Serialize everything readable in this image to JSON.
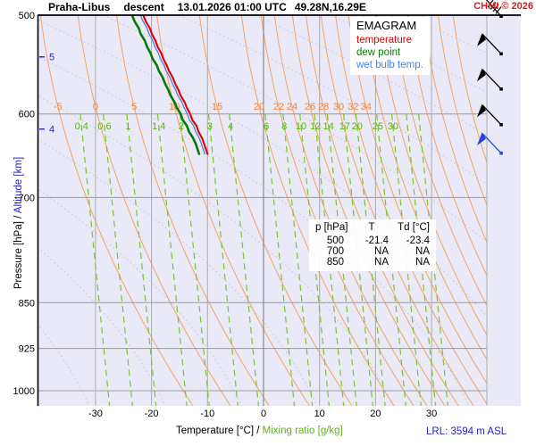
{
  "header": {
    "station": "Praha-Libus",
    "profile_type": "descent",
    "datetime": "13.01.2026 01:00 UTC",
    "coordinates": "49.28N,16.29E",
    "copyright": "CHMI © 2026"
  },
  "legend": {
    "heading": "EMAGRAM",
    "items": [
      {
        "name": "temperature",
        "color": "#dd0000"
      },
      {
        "name": "dew point",
        "color": "#077a07"
      },
      {
        "name": "wet bulb temp.",
        "color": "#4d7fe8"
      }
    ]
  },
  "readout_table": {
    "columns": [
      "p [hPa]",
      "T",
      "Td [°C]"
    ],
    "rows": [
      [
        "500",
        "-21.4",
        "-23.4"
      ],
      [
        "700",
        "NA",
        "NA"
      ],
      [
        "850",
        "NA",
        "NA"
      ]
    ]
  },
  "axis_titles": {
    "y_black": "Pressure [hPa]",
    "y_separator": " /  ",
    "y_blue": "Altitude [km]",
    "x_black": "Temperature [°C]",
    "x_separator": " /  ",
    "x_green": "Mixing ratio [g/kg]"
  },
  "footer": {
    "lrl_label": "LRL: 3594 m ASL"
  },
  "chart_data": {
    "type": "line",
    "diagram": "emagram thermodynamic sounding diagram",
    "title": "Praha-Libus descent 13.01.2026 01:00 UTC 49.28N,16.29E",
    "x_axis": {
      "label": "Temperature [°C]",
      "ticks": [
        -30,
        -20,
        -10,
        0,
        10,
        20,
        30
      ],
      "range": [
        -40.3,
        39.9
      ],
      "grid": true
    },
    "y_axis": {
      "label": "Pressure [hPa]",
      "scale": "log",
      "ticks": [
        500,
        600,
        700,
        850,
        925,
        1000
      ],
      "range": [
        500,
        1030
      ],
      "grid": true,
      "altitude_km_ticks": [
        {
          "km": "5",
          "hPa": 540
        },
        {
          "km": "4",
          "hPa": 617
        }
      ]
    },
    "colors": {
      "plot_background": "#e9e9f7",
      "isobar_grid": "#9a9a9a",
      "isotherm_grid": "#ababab",
      "isotherm_zero": "#787878",
      "dry_adiabat": "#f2a65e",
      "dry_adiabat_label": "#ee8844",
      "mixing_ratio": "#7cc62a",
      "mixing_ratio_label": "#5cb514",
      "moist_adiabat": "#ccccd8",
      "temperature": "#e10000",
      "dew_point": "#077a07",
      "wet_bulb": "#4d7fe8",
      "altitude_axis": "#2323cc"
    },
    "dry_adiabats": {
      "labels": [
        {
          "label": "-5",
          "t600": -36.7
        },
        {
          "label": "0",
          "t600": -30.0
        },
        {
          "label": "5",
          "t600": -23.1
        },
        {
          "label": "10",
          "t600": -15.9
        },
        {
          "label": "15",
          "t600": -8.3
        },
        {
          "label": "20",
          "t600": -0.8
        },
        {
          "label": "22",
          "t600": 2.7
        },
        {
          "label": "24",
          "t600": 5.1
        },
        {
          "label": "26",
          "t600": 8.3
        },
        {
          "label": "28",
          "t600": 10.7
        },
        {
          "label": "30",
          "t600": 13.4
        },
        {
          "label": "32",
          "t600": 16.0
        },
        {
          "label": "34",
          "t600": 18.3
        }
      ],
      "unlabeled_t600": [
        20.9,
        23.4,
        26.2,
        28.9,
        31.6,
        34.3,
        37.0
      ]
    },
    "mixing_ratio_lines": {
      "labels": [
        {
          "label": "0.4",
          "t": -32.5
        },
        {
          "label": "0.6",
          "t": -28.4
        },
        {
          "label": "1",
          "t": -24.2
        },
        {
          "label": "1.4",
          "t": -18.7
        },
        {
          "label": "2",
          "t": -14.7
        },
        {
          "label": "3",
          "t": -9.6
        },
        {
          "label": "4",
          "t": -5.9
        },
        {
          "label": "6",
          "t": 0.5
        },
        {
          "label": "8",
          "t": 3.7
        },
        {
          "label": "10",
          "t": 6.7
        },
        {
          "label": "12",
          "t": 9.3
        },
        {
          "label": "14",
          "t": 11.6
        },
        {
          "label": "17",
          "t": 14.5
        },
        {
          "label": "20",
          "t": 16.7
        },
        {
          "label": "25",
          "t": 20.4
        },
        {
          "label": "30",
          "t": 23.1
        }
      ],
      "unlabeled_t": [
        25.7,
        27.9
      ]
    },
    "moist_adiabats": {
      "count": 13,
      "style": "dotted"
    },
    "pressure_levels_hPa": [
      501,
      506,
      512,
      518,
      524,
      530,
      536,
      542,
      548,
      554,
      561,
      567,
      574,
      580,
      587,
      593,
      600,
      607,
      613,
      620,
      627,
      634,
      646
    ],
    "series": [
      {
        "name": "temperature",
        "t": [
          -21.4,
          -21.0,
          -20.3,
          -19.9,
          -19.3,
          -18.9,
          -18.3,
          -17.9,
          -17.3,
          -16.9,
          -16.2,
          -15.8,
          -15.2,
          -14.8,
          -14.1,
          -13.7,
          -13.1,
          -12.7,
          -12.0,
          -11.6,
          -11.0,
          -10.6,
          -10.0
        ]
      },
      {
        "name": "wet bulb temp.",
        "t": [
          -21.9,
          -21.5,
          -20.8,
          -20.4,
          -19.8,
          -19.4,
          -18.8,
          -18.4,
          -17.8,
          -17.4,
          -16.7,
          -16.3,
          -15.7,
          -15.3,
          -14.6,
          -14.2,
          -13.6,
          -13.2,
          -12.5,
          -12.1,
          -11.5,
          -11.1,
          -10.5
        ]
      },
      {
        "name": "dew point",
        "t": [
          -23.4,
          -23.0,
          -22.3,
          -21.9,
          -21.2,
          -20.8,
          -20.2,
          -19.8,
          -19.1,
          -18.7,
          -18.0,
          -17.6,
          -17.0,
          -16.6,
          -15.9,
          -15.5,
          -14.8,
          -14.4,
          -13.7,
          -13.3,
          -12.6,
          -12.1,
          -11.5
        ]
      }
    ],
    "sounding_levels_table": {
      "columns": [
        "p [hPa]",
        "T",
        "Td [°C]"
      ],
      "rows": [
        [
          "500",
          "-21.4",
          "-23.4"
        ],
        [
          "700",
          "NA",
          "NA"
        ],
        [
          "850",
          "NA",
          "NA"
        ]
      ]
    },
    "wind_barbs": [
      {
        "pressure": 501,
        "color": "#000000",
        "type": "multi-barb"
      },
      {
        "pressure": 537,
        "color": "#000000",
        "type": "pennant"
      },
      {
        "pressure": 573,
        "color": "#000000",
        "type": "pennant"
      },
      {
        "pressure": 612,
        "color": "#000000",
        "type": "pennant"
      },
      {
        "pressure": 645,
        "color": "#2244dd",
        "type": "pennant"
      }
    ],
    "annotations": {
      "lrl": "LRL: 3594 m ASL"
    }
  }
}
